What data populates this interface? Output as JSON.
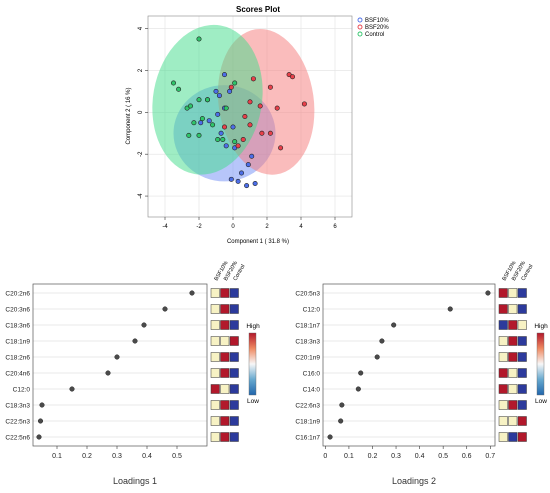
{
  "colors": {
    "bsf10": "#4c6ee8",
    "bsf20": "#e8404a",
    "control": "#2fc46a",
    "bsf10_fill": "#6f8ef5",
    "bsf20_fill": "#f57a7a",
    "control_fill": "#3fdc8a",
    "heat_high": "#b2182b",
    "heat_mid": "#f7f2c4",
    "heat_low": "#2c3a9c",
    "dot": "#4a4a4a"
  },
  "chart_data": [
    {
      "type": "scatter",
      "title": "Scores Plot",
      "xlabel": "Component 1 ( 31.8 %)",
      "ylabel": "Component 2 ( 16 %)",
      "xlim": [
        -5,
        7
      ],
      "ylim": [
        -5,
        4.6
      ],
      "xticks": [
        -4,
        -2,
        0,
        2,
        4,
        6
      ],
      "yticks": [
        -4,
        -2,
        0,
        2,
        4
      ],
      "grid": true,
      "legend_position": "top-right",
      "series": [
        {
          "name": "BSF10%",
          "color_key": "bsf10",
          "points": [
            [
              -1.0,
              1.0
            ],
            [
              -0.5,
              1.8
            ],
            [
              -0.2,
              1.0
            ],
            [
              -0.8,
              0.8
            ],
            [
              -1.5,
              0.6
            ],
            [
              -0.5,
              0.2
            ],
            [
              -0.9,
              -0.1
            ],
            [
              -1.4,
              -0.4
            ],
            [
              -0.7,
              -1.0
            ],
            [
              -0.4,
              -1.6
            ],
            [
              -1.9,
              -0.5
            ],
            [
              0.0,
              -0.7
            ],
            [
              0.1,
              -1.7
            ],
            [
              -0.1,
              -3.2
            ],
            [
              0.3,
              -3.3
            ],
            [
              0.8,
              -3.5
            ],
            [
              1.3,
              -3.4
            ],
            [
              0.5,
              -2.9
            ],
            [
              0.9,
              -2.5
            ],
            [
              1.1,
              -2.1
            ]
          ],
          "ellipse": {
            "cx": -0.5,
            "cy": -1.0,
            "rx": 3.0,
            "ry": 2.3,
            "angle_deg": 0
          }
        },
        {
          "name": "BSF20%",
          "color_key": "bsf20",
          "points": [
            [
              1.2,
              1.6
            ],
            [
              2.2,
              1.2
            ],
            [
              3.3,
              1.8
            ],
            [
              3.5,
              1.7
            ],
            [
              4.2,
              0.4
            ],
            [
              2.6,
              0.2
            ],
            [
              1.6,
              0.3
            ],
            [
              1.0,
              0.5
            ],
            [
              -0.1,
              1.2
            ],
            [
              0.7,
              -0.2
            ],
            [
              1.0,
              -0.6
            ],
            [
              1.7,
              -1.0
            ],
            [
              2.2,
              -1.0
            ],
            [
              2.8,
              -1.7
            ],
            [
              0.6,
              -1.3
            ],
            [
              0.3,
              -1.6
            ],
            [
              -0.5,
              -0.7
            ]
          ],
          "ellipse": {
            "cx": 1.95,
            "cy": 0.5,
            "rx": 2.8,
            "ry": 3.5,
            "angle_deg": -8
          }
        },
        {
          "name": "Control",
          "color_key": "control",
          "points": [
            [
              -2.0,
              3.5
            ],
            [
              -3.5,
              1.4
            ],
            [
              -3.2,
              1.1
            ],
            [
              -2.7,
              0.2
            ],
            [
              -2.5,
              0.3
            ],
            [
              -2.0,
              0.6
            ],
            [
              -1.5,
              0.6
            ],
            [
              -1.8,
              -0.3
            ],
            [
              -2.3,
              -0.5
            ],
            [
              -2.6,
              -1.1
            ],
            [
              -2.0,
              -1.1
            ],
            [
              -1.2,
              -0.6
            ],
            [
              -0.9,
              -1.3
            ],
            [
              -0.6,
              -1.3
            ],
            [
              0.1,
              -1.4
            ],
            [
              -0.4,
              0.2
            ],
            [
              0.1,
              1.4
            ]
          ],
          "ellipse": {
            "cx": -1.5,
            "cy": 0.6,
            "rx": 3.2,
            "ry": 3.6,
            "angle_deg": 10
          }
        }
      ]
    },
    {
      "type": "scatter",
      "subtype": "loadings-dotplot",
      "xlabel": "Loadings 1",
      "xlim": [
        0.02,
        0.6
      ],
      "xticks": [
        0.1,
        0.2,
        0.3,
        0.4,
        0.5
      ],
      "group_labels": [
        "BSF10%",
        "BSF20%",
        "Control"
      ],
      "rows": [
        {
          "label": "C20:2n6",
          "value": 0.55,
          "heat": [
            "mid",
            "high",
            "low"
          ]
        },
        {
          "label": "C20:3n6",
          "value": 0.46,
          "heat": [
            "mid",
            "high",
            "low"
          ]
        },
        {
          "label": "C18:3n6",
          "value": 0.39,
          "heat": [
            "mid",
            "high",
            "low"
          ]
        },
        {
          "label": "C18:1n9",
          "value": 0.36,
          "heat": [
            "mid",
            "mid",
            "high"
          ]
        },
        {
          "label": "C18:2n6",
          "value": 0.3,
          "heat": [
            "mid",
            "high",
            "low"
          ]
        },
        {
          "label": "C20:4n6",
          "value": 0.27,
          "heat": [
            "mid",
            "high",
            "low"
          ]
        },
        {
          "label": "C12:0",
          "value": 0.15,
          "heat": [
            "high",
            "mid",
            "low"
          ]
        },
        {
          "label": "C18:3n3",
          "value": 0.05,
          "heat": [
            "mid",
            "high",
            "low"
          ]
        },
        {
          "label": "C22:5n3",
          "value": 0.045,
          "heat": [
            "mid",
            "high",
            "low"
          ]
        },
        {
          "label": "C22:5n6",
          "value": 0.04,
          "heat": [
            "mid",
            "high",
            "low"
          ]
        }
      ],
      "colorbar": {
        "high_label": "High",
        "low_label": "Low"
      }
    },
    {
      "type": "scatter",
      "subtype": "loadings-dotplot",
      "xlabel": "Loadings 2",
      "xlim": [
        -0.01,
        0.72
      ],
      "xticks": [
        0.0,
        0.1,
        0.2,
        0.3,
        0.4,
        0.5,
        0.6,
        0.7
      ],
      "group_labels": [
        "BSF10%",
        "BSF20%",
        "Control"
      ],
      "rows": [
        {
          "label": "C20:5n3",
          "value": 0.69,
          "heat": [
            "high",
            "mid",
            "low"
          ]
        },
        {
          "label": "C12:0",
          "value": 0.53,
          "heat": [
            "high",
            "mid",
            "low"
          ]
        },
        {
          "label": "C18:1n7",
          "value": 0.29,
          "heat": [
            "low",
            "high",
            "mid"
          ]
        },
        {
          "label": "C18:3n3",
          "value": 0.24,
          "heat": [
            "mid",
            "high",
            "low"
          ]
        },
        {
          "label": "C20:1n9",
          "value": 0.22,
          "heat": [
            "mid",
            "high",
            "low"
          ]
        },
        {
          "label": "C16:0",
          "value": 0.15,
          "heat": [
            "high",
            "mid",
            "low"
          ]
        },
        {
          "label": "C14:0",
          "value": 0.14,
          "heat": [
            "high",
            "mid",
            "low"
          ]
        },
        {
          "label": "C22:6n3",
          "value": 0.07,
          "heat": [
            "mid",
            "high",
            "low"
          ]
        },
        {
          "label": "C18:1n9",
          "value": 0.065,
          "heat": [
            "mid",
            "mid",
            "high"
          ]
        },
        {
          "label": "C16:1n7",
          "value": 0.02,
          "heat": [
            "mid",
            "low",
            "high"
          ]
        }
      ],
      "colorbar": {
        "high_label": "High",
        "low_label": "Low"
      }
    }
  ]
}
